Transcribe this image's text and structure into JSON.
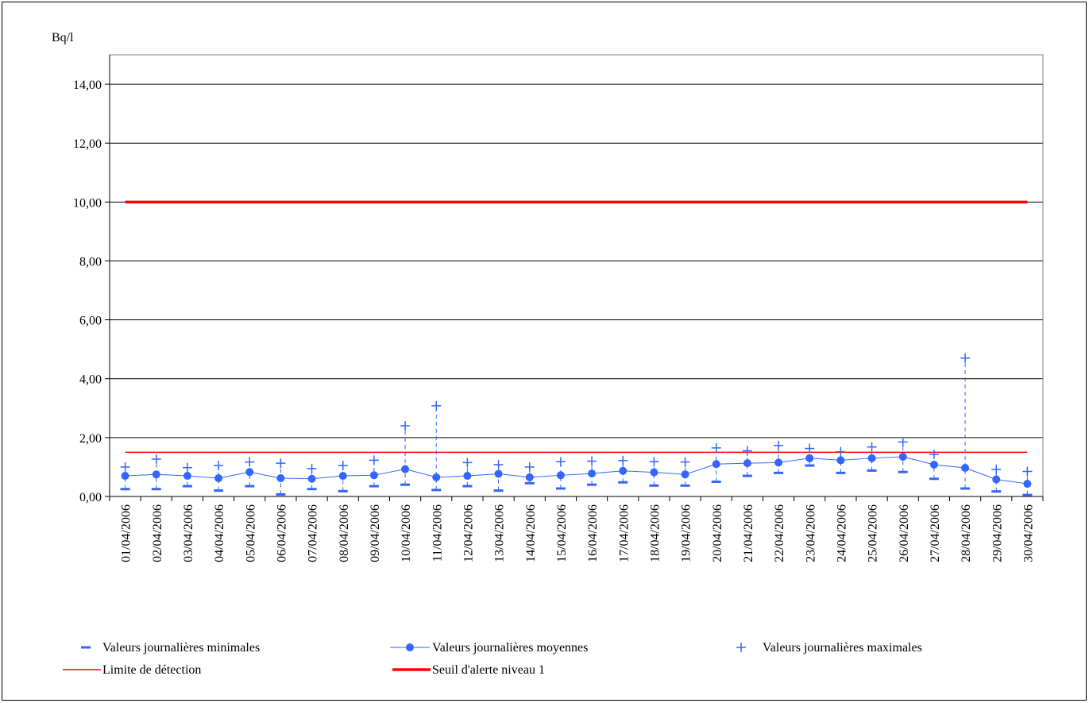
{
  "chart_data": {
    "type": "line",
    "ylabel": "Bq/l",
    "ylim": [
      0,
      15
    ],
    "yticks": [
      0,
      2,
      4,
      6,
      8,
      10,
      12,
      14
    ],
    "ytick_labels": [
      "0,00",
      "2,00",
      "4,00",
      "6,00",
      "8,00",
      "10,00",
      "12,00",
      "14,00"
    ],
    "grid": true,
    "legend_position": "bottom",
    "categories": [
      "01/04/2006",
      "02/04/2006",
      "03/04/2006",
      "04/04/2006",
      "05/04/2006",
      "06/04/2006",
      "07/04/2006",
      "08/04/2006",
      "09/04/2006",
      "10/04/2006",
      "11/04/2006",
      "12/04/2006",
      "13/04/2006",
      "14/04/2006",
      "15/04/2006",
      "16/04/2006",
      "17/04/2006",
      "18/04/2006",
      "19/04/2006",
      "20/04/2006",
      "21/04/2006",
      "22/04/2006",
      "23/04/2006",
      "24/04/2006",
      "25/04/2006",
      "26/04/2006",
      "27/04/2006",
      "28/04/2006",
      "29/04/2006",
      "30/04/2006"
    ],
    "series": [
      {
        "name": "Valeurs journalières minimales",
        "color": "#3366ff",
        "marker": "dash",
        "values": [
          0.25,
          0.25,
          0.35,
          0.2,
          0.35,
          0.07,
          0.25,
          0.18,
          0.35,
          0.4,
          0.22,
          0.35,
          0.2,
          0.45,
          0.27,
          0.4,
          0.48,
          0.37,
          0.37,
          0.5,
          0.7,
          0.8,
          1.05,
          0.8,
          0.88,
          0.83,
          0.6,
          0.27,
          0.17,
          0.05
        ]
      },
      {
        "name": "Valeurs journalières moyennes",
        "color": "#3366ff",
        "marker": "circle",
        "values": [
          0.7,
          0.75,
          0.7,
          0.62,
          0.83,
          0.62,
          0.6,
          0.7,
          0.72,
          0.93,
          0.65,
          0.7,
          0.77,
          0.65,
          0.72,
          0.78,
          0.87,
          0.82,
          0.75,
          1.1,
          1.13,
          1.15,
          1.3,
          1.23,
          1.3,
          1.35,
          1.08,
          0.97,
          0.58,
          0.43
        ]
      },
      {
        "name": "Valeurs journalières maximales",
        "color": "#3366ff",
        "marker": "plus",
        "values": [
          1.0,
          1.27,
          0.98,
          1.05,
          1.17,
          1.13,
          0.95,
          1.05,
          1.23,
          2.4,
          3.08,
          1.15,
          1.08,
          1.0,
          1.18,
          1.2,
          1.22,
          1.18,
          1.17,
          1.65,
          1.55,
          1.73,
          1.63,
          1.52,
          1.68,
          1.85,
          1.43,
          4.7,
          0.92,
          0.85
        ]
      },
      {
        "name": "Limite de détection",
        "color": "#ff0000",
        "style": "thin-line",
        "value": 1.5
      },
      {
        "name": "Seuil d'alerte niveau 1",
        "color": "#ff0000",
        "style": "thick-line",
        "value": 10
      }
    ]
  }
}
